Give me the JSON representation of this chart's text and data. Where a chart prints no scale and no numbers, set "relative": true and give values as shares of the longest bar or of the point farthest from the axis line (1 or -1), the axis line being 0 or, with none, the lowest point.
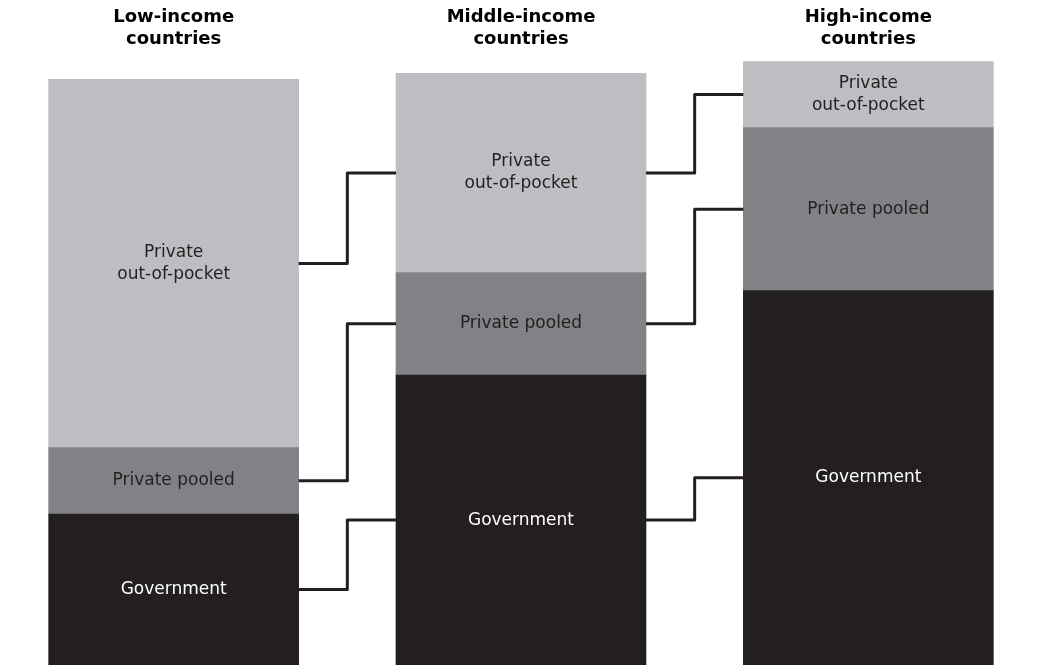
{
  "chart_data": {
    "type": "bar",
    "stacked": true,
    "relative": true,
    "categories": [
      "Low-income countries",
      "Middle-income countries",
      "High-income countries"
    ],
    "series": [
      {
        "name": "Government",
        "color": "#231f20",
        "values": [
          0.25,
          0.48,
          0.62
        ]
      },
      {
        "name": "Private pooled",
        "color": "#808285",
        "values": [
          0.11,
          0.17,
          0.27
        ]
      },
      {
        "name": "Private out-of-pocket",
        "color": "#bdbec2",
        "values": [
          0.61,
          0.33,
          0.11
        ]
      }
    ]
  }
}
